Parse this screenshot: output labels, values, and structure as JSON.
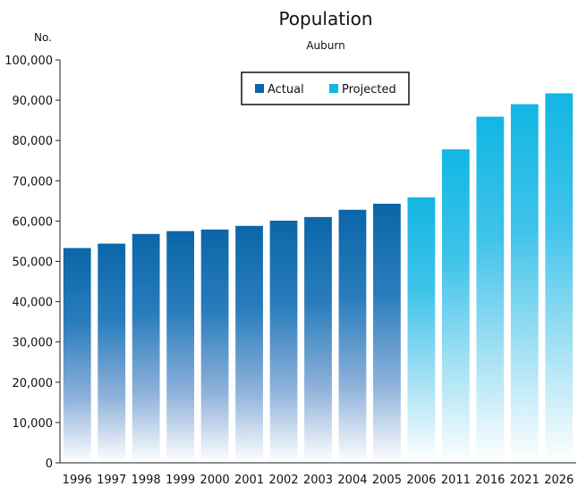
{
  "chart_data": {
    "type": "bar",
    "title": "Population",
    "subtitle": "Auburn",
    "ylabel": "No.",
    "ylim": [
      0,
      100000
    ],
    "yticks": [
      "0",
      "10,000",
      "20,000",
      "30,000",
      "40,000",
      "50,000",
      "60,000",
      "70,000",
      "80,000",
      "90,000",
      "100,000"
    ],
    "grid": false,
    "legend_position": "top-center",
    "legend": [
      {
        "label": "Actual",
        "color": "#0a66a8"
      },
      {
        "label": "Projected",
        "color": "#12b6e3"
      }
    ],
    "categories": [
      "1996",
      "1997",
      "1998",
      "1999",
      "2000",
      "2001",
      "2002",
      "2003",
      "2004",
      "2005",
      "2006",
      "2011",
      "2016",
      "2021",
      "2026"
    ],
    "series": [
      {
        "name": "Actual",
        "values": [
          53300,
          54400,
          56800,
          57500,
          57900,
          58800,
          60100,
          61000,
          62800,
          64300,
          null,
          null,
          null,
          null,
          null
        ]
      },
      {
        "name": "Projected",
        "values": [
          null,
          null,
          null,
          null,
          null,
          null,
          null,
          null,
          null,
          null,
          65900,
          77800,
          85900,
          89000,
          91700
        ]
      }
    ]
  }
}
